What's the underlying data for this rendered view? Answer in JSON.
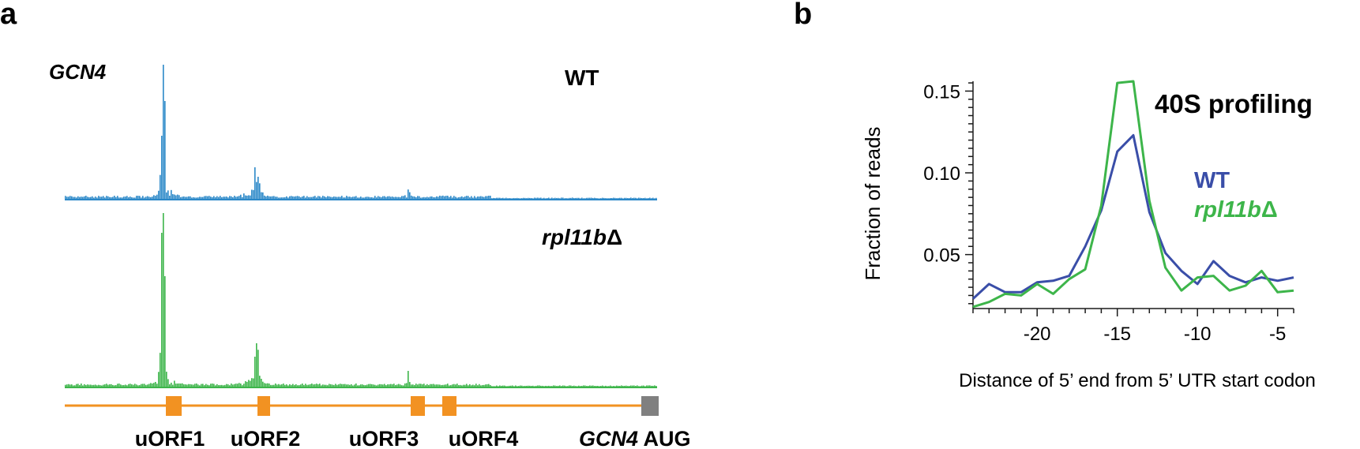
{
  "panels": {
    "a": "a",
    "b": "b"
  },
  "panel_a": {
    "gene": "GCN4",
    "track_wt_label": "WT",
    "track_mut_label": "rpl11b",
    "delta": "Δ",
    "features": [
      "uORF1",
      "uORF2",
      "uORF3",
      "uORF4"
    ],
    "aug_gene": "GCN4",
    "aug_text": " AUG",
    "colors": {
      "wt": "#2b88c8",
      "mut": "#3db54a",
      "uorf": "#f29222",
      "aug": "#808080"
    }
  },
  "panel_b": {
    "title": "40S profiling",
    "legend_wt": "WT",
    "legend_mut": "rpl11b",
    "delta": "Δ",
    "ylabel": "Fraction of reads",
    "xlabel": "Distance of 5’ end from 5’ UTR start codon",
    "colors": {
      "wt": "#3a4ea8",
      "mut": "#3db54a"
    }
  },
  "chart_data": {
    "type": "line",
    "title": "40S profiling",
    "xlabel": "Distance of 5’ end from 5’ UTR start codon",
    "ylabel": "Fraction of reads",
    "x": [
      -24,
      -23,
      -22,
      -21,
      -20,
      -19,
      -18,
      -17,
      -16,
      -15,
      -14,
      -13,
      -12,
      -11,
      -10,
      -9,
      -8,
      -7,
      -6,
      -5,
      -4
    ],
    "xlim": [
      -24,
      -4
    ],
    "ylim": [
      0.017,
      0.156
    ],
    "xticks": [
      -20,
      -15,
      -10,
      -5
    ],
    "yticks": [
      0.05,
      0.1,
      0.15
    ],
    "ytick_labels": [
      "0.05",
      "0.10",
      "0.15"
    ],
    "series": [
      {
        "name": "WT",
        "values": [
          0.023,
          0.032,
          0.027,
          0.027,
          0.033,
          0.034,
          0.037,
          0.055,
          0.077,
          0.113,
          0.123,
          0.076,
          0.051,
          0.04,
          0.032,
          0.046,
          0.037,
          0.033,
          0.036,
          0.034,
          0.036
        ]
      },
      {
        "name": "rpl11bΔ",
        "values": [
          0.018,
          0.021,
          0.026,
          0.025,
          0.032,
          0.026,
          0.035,
          0.041,
          0.08,
          0.155,
          0.156,
          0.083,
          0.042,
          0.028,
          0.036,
          0.037,
          0.028,
          0.031,
          0.04,
          0.027,
          0.028
        ]
      }
    ]
  }
}
